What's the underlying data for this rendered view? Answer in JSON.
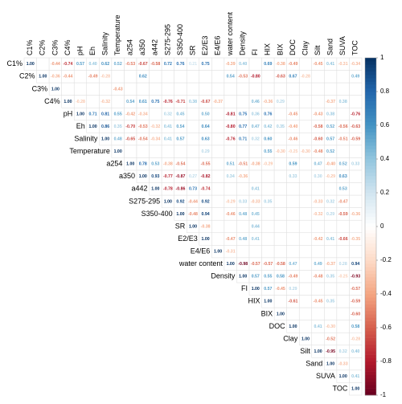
{
  "chart_data": {
    "type": "corrplot",
    "variables": [
      "C1%",
      "C2%",
      "C3%",
      "C4%",
      "pH",
      "Eh",
      "Salinity",
      "Temperature",
      "a254",
      "a350",
      "a442",
      "S275-295",
      "S350-400",
      "SR",
      "E2/E3",
      "E4/E6",
      "water content",
      "Density",
      "FI",
      "HIX",
      "BIX",
      "DOC",
      "Clay",
      "Silt",
      "Sand",
      "SUVA",
      "TOC"
    ],
    "values": [
      [
        1,
        null,
        -0.44,
        -0.74,
        0.57,
        0.4,
        0.62,
        0.52,
        -0.53,
        -0.67,
        -0.58,
        0.72,
        0.76,
        0.21,
        0.75,
        null,
        -0.39,
        0.4,
        null,
        0.69,
        -0.38,
        -0.49,
        null,
        -0.45,
        0.41,
        -0.31,
        -0.34
      ],
      [
        1,
        -0.36,
        -0.44,
        null,
        -0.49,
        -0.28,
        null,
        null,
        0.62,
        null,
        null,
        null,
        null,
        null,
        null,
        0.54,
        -0.53,
        -0.8,
        null,
        -0.63,
        0.67,
        -0.28,
        null,
        null,
        null,
        0.49
      ],
      [
        1,
        null,
        null,
        null,
        null,
        -0.43,
        null,
        null,
        null,
        null,
        null,
        null,
        null,
        null,
        null,
        null,
        null,
        null,
        null,
        null,
        null,
        null,
        null,
        null,
        null
      ],
      [
        1,
        -0.28,
        null,
        -0.32,
        null,
        0.54,
        0.61,
        0.75,
        -0.76,
        -0.71,
        0.38,
        -0.67,
        -0.37,
        null,
        null,
        0.46,
        -0.36,
        0.29,
        null,
        null,
        null,
        -0.37,
        0.38,
        null
      ],
      [
        1,
        0.71,
        0.81,
        0.55,
        -0.42,
        -0.34,
        null,
        0.32,
        0.45,
        null,
        0.5,
        null,
        -0.81,
        0.75,
        0.36,
        0.76,
        null,
        -0.45,
        null,
        -0.43,
        0.38,
        null,
        -0.76
      ],
      [
        1,
        0.86,
        0.35,
        -0.7,
        -0.53,
        -0.32,
        0.41,
        0.54,
        null,
        0.64,
        null,
        -0.8,
        0.77,
        0.47,
        0.42,
        0.35,
        -0.4,
        null,
        -0.58,
        0.52,
        -0.56,
        -0.63
      ],
      [
        1,
        0.48,
        -0.65,
        -0.54,
        -0.34,
        0.41,
        0.57,
        null,
        0.63,
        null,
        -0.76,
        0.71,
        0.32,
        0.6,
        null,
        -0.46,
        null,
        -0.6,
        0.57,
        -0.51,
        -0.59
      ],
      [
        1,
        null,
        null,
        null,
        null,
        null,
        null,
        0.29,
        null,
        null,
        null,
        null,
        0.55,
        -0.3,
        -0.25,
        -0.3,
        -0.48,
        0.52,
        null,
        null
      ],
      [
        1,
        0.78,
        0.53,
        -0.38,
        -0.54,
        null,
        -0.55,
        null,
        0.51,
        -0.51,
        -0.38,
        -0.29,
        null,
        0.59,
        null,
        0.47,
        -0.4,
        0.52,
        0.33
      ],
      [
        1,
        0.93,
        -0.77,
        -0.87,
        0.27,
        -0.82,
        null,
        0.34,
        -0.36,
        null,
        null,
        null,
        0.33,
        null,
        0.3,
        -0.29,
        0.63,
        null
      ],
      [
        1,
        -0.78,
        -0.86,
        0.73,
        -0.74,
        null,
        null,
        null,
        0.41,
        null,
        null,
        null,
        null,
        null,
        null,
        0.53,
        null
      ],
      [
        1,
        0.92,
        -0.44,
        0.92,
        null,
        -0.29,
        0.33,
        -0.33,
        0.35,
        null,
        null,
        null,
        -0.33,
        0.32,
        -0.47,
        null
      ],
      [
        1,
        -0.48,
        0.94,
        null,
        -0.46,
        0.48,
        0.45,
        null,
        null,
        null,
        null,
        -0.32,
        0.29,
        -0.59,
        -0.36
      ],
      [
        1,
        -0.38,
        null,
        null,
        null,
        0.44,
        null,
        null,
        null,
        null,
        null,
        null,
        null,
        null
      ],
      [
        1,
        null,
        -0.47,
        0.48,
        0.41,
        null,
        null,
        null,
        null,
        -0.42,
        0.41,
        -0.66,
        -0.35
      ],
      [
        1,
        -0.31,
        null,
        null,
        null,
        null,
        null,
        null,
        null,
        null,
        null,
        null
      ],
      [
        1,
        -0.98,
        -0.57,
        -0.57,
        -0.58,
        0.47,
        null,
        0.49,
        -0.37,
        0.28,
        0.94
      ],
      [
        1,
        0.57,
        0.55,
        0.58,
        -0.49,
        null,
        -0.48,
        0.35,
        -0.25,
        -0.93
      ],
      [
        1,
        0.57,
        -0.45,
        0.29,
        null,
        null,
        null,
        null,
        -0.57
      ],
      [
        1,
        null,
        -0.61,
        null,
        -0.45,
        0.35,
        null,
        -0.59
      ],
      [
        1,
        null,
        null,
        null,
        null,
        null,
        -0.6
      ],
      [
        1,
        null,
        0.41,
        -0.3,
        null,
        0.58
      ],
      [
        1,
        null,
        -0.52,
        null,
        -0.28
      ],
      [
        1,
        -0.95,
        0.32,
        0.4
      ],
      [
        1,
        -0.33,
        null
      ],
      [
        1,
        0.41
      ],
      [
        1
      ]
    ],
    "value_labels": [
      [
        "1.00",
        null,
        "-0.44",
        "-0.74",
        "0.57",
        "0.40",
        "0.62",
        "0.52",
        "-0.53",
        "-0.67",
        "-0.58",
        "0.72",
        "0.76",
        "0.21",
        "0.75",
        null,
        "-0.39",
        "0.40",
        null,
        "0.69",
        "-0.38",
        "-0.49",
        null,
        "-0.45",
        "0.41",
        "-0.31",
        "-0.34"
      ],
      [
        "1.00",
        "-0.36",
        "-0.44",
        null,
        "-0.49",
        "-0.28",
        null,
        null,
        "0.62",
        null,
        null,
        null,
        null,
        null,
        null,
        "0.54",
        "-0.53",
        "-0.80",
        null,
        "-0.63",
        "0.67",
        "-0.28",
        null,
        null,
        null,
        "0.49"
      ],
      [
        "1.00",
        null,
        null,
        null,
        null,
        "-0.43",
        null,
        null,
        null,
        null,
        null,
        null,
        null,
        null,
        null,
        null,
        null,
        null,
        null,
        null,
        null,
        null,
        null,
        null,
        null
      ],
      [
        "1.00",
        "-0.28",
        null,
        "-0.32",
        null,
        "0.54",
        "0.61",
        "0.75",
        "-0.76",
        "-0.71",
        "0.38",
        "-0.67",
        "-0.37",
        null,
        null,
        "0.46",
        "-0.36",
        "0.29",
        null,
        null,
        null,
        "-0.37",
        "0.38",
        null
      ],
      [
        "1.00",
        "0.71",
        "0.81",
        "0.55",
        "-0.42",
        "-0.34",
        null,
        "0.32",
        "0.45",
        null,
        "0.50",
        null,
        "-0.81",
        "0.75",
        "0.36",
        "0.76",
        null,
        "-0.45",
        null,
        "-0.43",
        "0.38",
        null,
        "-0.76"
      ],
      [
        "1.00",
        "0.86",
        "0.35",
        "-0.70",
        "-0.53",
        "-0.32",
        "0.41",
        "0.54",
        null,
        "0.64",
        null,
        "-0.80",
        "0.77",
        "0.47",
        "0.42",
        "0.35",
        "-0.40",
        null,
        "-0.58",
        "0.52",
        "-0.56",
        "-0.63"
      ],
      [
        "1.00",
        "0.48",
        "-0.65",
        "-0.54",
        "-0.34",
        "0.41",
        "0.57",
        null,
        "0.63",
        null,
        "-0.76",
        "0.71",
        "0.32",
        "0.60",
        null,
        "-0.46",
        null,
        "-0.60",
        "0.57",
        "-0.51",
        "-0.59"
      ],
      [
        "1.00",
        null,
        null,
        null,
        null,
        null,
        null,
        "0.29",
        null,
        null,
        null,
        null,
        "0.55",
        "-0.30",
        "-0.25",
        "-0.30",
        "-0.48",
        "0.52",
        null,
        null
      ],
      [
        "1.00",
        "0.78",
        "0.53",
        "-0.38",
        "-0.54",
        null,
        "-0.55",
        null,
        "0.51",
        "-0.51",
        "-0.38",
        "-0.29",
        null,
        "0.59",
        null,
        "0.47",
        "-0.40",
        "0.52",
        "0.33"
      ],
      [
        "1.00",
        "0.93",
        "-0.77",
        "-0.87",
        "0.27",
        "-0.82",
        null,
        "0.34",
        "-0.36",
        null,
        null,
        null,
        "0.33",
        null,
        "0.30",
        "-0.29",
        "0.63",
        null
      ],
      [
        "1.00",
        "-0.78",
        "-0.86",
        "0.73",
        "-0.74",
        null,
        null,
        null,
        "0.41",
        null,
        null,
        null,
        null,
        null,
        null,
        "0.53",
        null
      ],
      [
        "1.00",
        "0.92",
        "-0.44",
        "0.92",
        null,
        "-0.29",
        "0.33",
        "-0.33",
        "0.35",
        null,
        null,
        null,
        "-0.33",
        "0.32",
        "-0.47",
        null
      ],
      [
        "1.00",
        "-0.48",
        "0.94",
        null,
        "-0.46",
        "0.48",
        "0.45",
        null,
        null,
        null,
        null,
        "-0.32",
        "0.29",
        "-0.59",
        "-0.36"
      ],
      [
        "1.00",
        "-0.38",
        null,
        null,
        null,
        "0.44",
        null,
        null,
        null,
        null,
        null,
        null,
        null,
        null
      ],
      [
        "1.00",
        null,
        "-0.47",
        "0.48",
        "0.41",
        null,
        null,
        null,
        null,
        "-0.42",
        "0.41",
        "-0.66",
        "-0.35"
      ],
      [
        "1.00",
        "-0.31",
        null,
        null,
        null,
        null,
        null,
        null,
        null,
        null,
        null,
        null
      ],
      [
        "1.00",
        "-0.98",
        "-0.57",
        "-0.57",
        "-0.58",
        "0.47",
        null,
        "0.49",
        "-0.37",
        "0.28",
        "0.94"
      ],
      [
        "1.00",
        "0.57",
        "0.55",
        "0.58",
        "-0.49",
        null,
        "-0.48",
        "0.35",
        "-0.25",
        "-0.93"
      ],
      [
        "1.00",
        "0.57",
        "-0.45",
        "0.29",
        null,
        null,
        null,
        null,
        "-0.57"
      ],
      [
        "1.00",
        null,
        "-0.61",
        null,
        "-0.45",
        "0.35",
        null,
        "-0.59"
      ],
      [
        "1.00",
        null,
        null,
        null,
        null,
        null,
        "-0.60"
      ],
      [
        "1.00",
        null,
        "0.41",
        "-0.30",
        null,
        "0.58"
      ],
      [
        "1.00",
        null,
        "-0.52",
        null,
        "-0.28"
      ],
      [
        "1.00",
        "-0.95",
        "0.32",
        "0.40"
      ],
      [
        "1.00",
        "-0.33",
        null
      ],
      [
        "1.00",
        "0.41"
      ],
      [
        "1.00"
      ]
    ],
    "colors": [
      "#67001F",
      "#B2182B",
      "#D6604D",
      "#F4A582",
      "#FDDBC7",
      "#FFFFFF",
      "#D1E5F0",
      "#92C5DE",
      "#4393C3",
      "#2166AC",
      "#053061"
    ],
    "clim": [
      -1,
      1
    ],
    "cticks": [
      1,
      0.8,
      0.6,
      0.4,
      0.2,
      0,
      -0.2,
      -0.4,
      -0.6,
      -0.8,
      -1
    ]
  }
}
